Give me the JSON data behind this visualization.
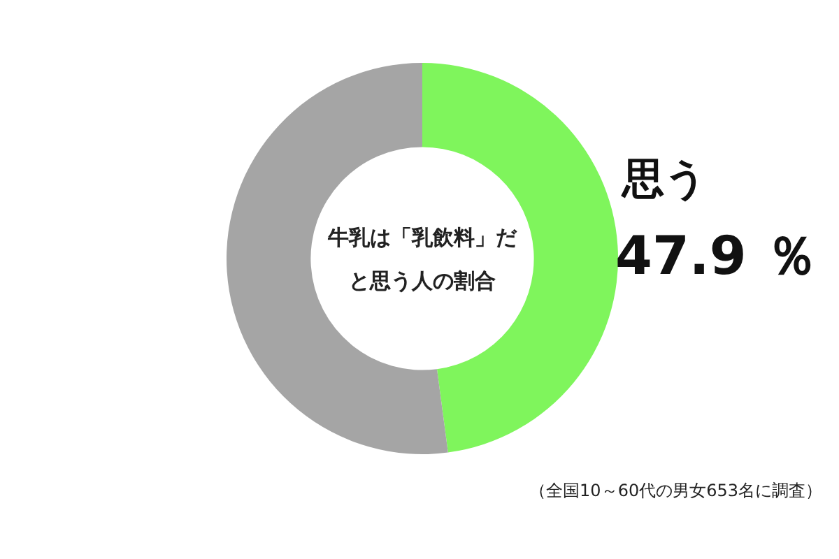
{
  "chart_data": {
    "type": "donut",
    "title": "牛乳は「乳飲料」だと思う人の割合",
    "categories": [
      "思う",
      null
    ],
    "values": [
      47.9,
      52.1
    ],
    "colors": [
      "#7ff55c",
      "#a5a5a5"
    ],
    "value_labels": [
      "47.9 ％",
      null
    ],
    "legend": false,
    "annotations": [
      "（全国10～60代の男女653名に調査）"
    ]
  }
}
